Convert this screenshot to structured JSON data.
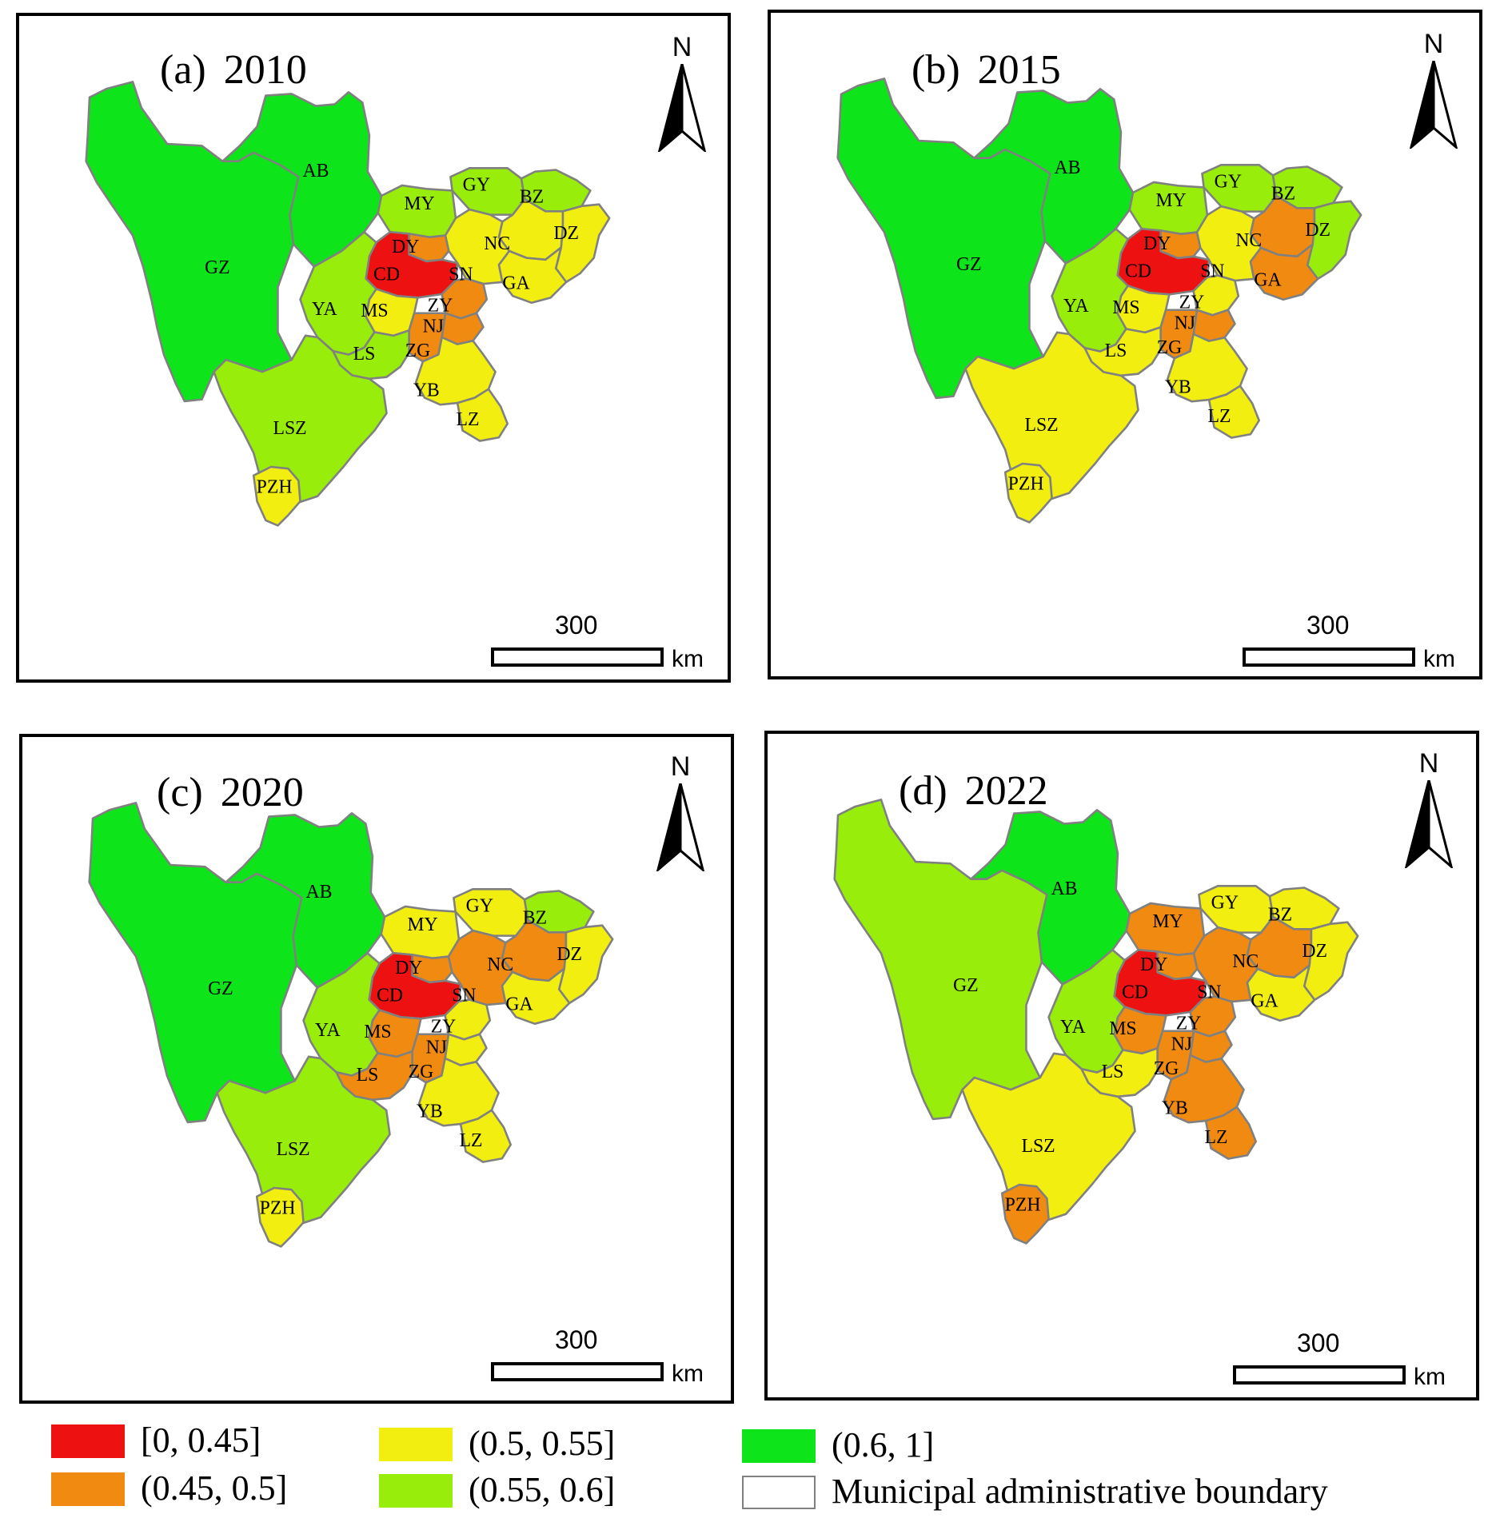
{
  "panels": [
    {
      "id": "a",
      "label": "(a)",
      "year": "2010",
      "cities": {
        "AB": "(0.6, 1]",
        "GZ": "(0.6, 1]",
        "MY": "(0.55, 0.6]",
        "GY": "(0.55, 0.6]",
        "BZ": "(0.55, 0.6]",
        "DZ": "(0.5, 0.55]",
        "NC": "(0.5, 0.55]",
        "GA": "(0.5, 0.55]",
        "SN": "(0.5, 0.55]",
        "DY": "(0.45, 0.5]",
        "CD": "[0, 0.45]",
        "YA": "(0.55, 0.6]",
        "MS": "(0.5, 0.55]",
        "ZY": "(0.45, 0.5]",
        "NJ": "(0.45, 0.5]",
        "LS": "(0.55, 0.6]",
        "ZG": "(0.45, 0.5]",
        "YB": "(0.5, 0.55]",
        "LZ": "(0.5, 0.55]",
        "LSZ": "(0.55, 0.6]",
        "PZH": "(0.5, 0.55]"
      }
    },
    {
      "id": "b",
      "label": "(b)",
      "year": "2015",
      "cities": {
        "AB": "(0.6, 1]",
        "GZ": "(0.6, 1]",
        "MY": "(0.55, 0.6]",
        "GY": "(0.55, 0.6]",
        "BZ": "(0.55, 0.6]",
        "DZ": "(0.55, 0.6]",
        "NC": "(0.45, 0.5]",
        "GA": "(0.45, 0.5]",
        "SN": "(0.5, 0.55]",
        "DY": "(0.45, 0.5]",
        "CD": "[0, 0.45]",
        "YA": "(0.55, 0.6]",
        "MS": "(0.5, 0.55]",
        "ZY": "(0.5, 0.55]",
        "NJ": "(0.45, 0.5]",
        "LS": "(0.5, 0.55]",
        "ZG": "(0.45, 0.5]",
        "YB": "(0.5, 0.55]",
        "LZ": "(0.5, 0.55]",
        "LSZ": "(0.5, 0.55]",
        "PZH": "(0.5, 0.55]"
      }
    },
    {
      "id": "c",
      "label": "(c)",
      "year": "2020",
      "cities": {
        "AB": "(0.6, 1]",
        "GZ": "(0.6, 1]",
        "MY": "(0.5, 0.55]",
        "GY": "(0.5, 0.55]",
        "BZ": "(0.55, 0.6]",
        "DZ": "(0.5, 0.55]",
        "NC": "(0.45, 0.5]",
        "GA": "(0.5, 0.55]",
        "SN": "(0.45, 0.5]",
        "DY": "(0.45, 0.5]",
        "CD": "[0, 0.45]",
        "YA": "(0.55, 0.6]",
        "MS": "(0.45, 0.5]",
        "ZY": "(0.5, 0.55]",
        "NJ": "(0.5, 0.55]",
        "LS": "(0.45, 0.5]",
        "ZG": "(0.45, 0.5]",
        "YB": "(0.5, 0.55]",
        "LZ": "(0.5, 0.55]",
        "LSZ": "(0.55, 0.6]",
        "PZH": "(0.5, 0.55]"
      }
    },
    {
      "id": "d",
      "label": "(d)",
      "year": "2022",
      "cities": {
        "AB": "(0.6, 1]",
        "GZ": "(0.55, 0.6]",
        "MY": "(0.45, 0.5]",
        "GY": "(0.5, 0.55]",
        "BZ": "(0.5, 0.55]",
        "DZ": "(0.5, 0.55]",
        "NC": "(0.45, 0.5]",
        "GA": "(0.5, 0.55]",
        "SN": "(0.45, 0.5]",
        "DY": "(0.45, 0.5]",
        "CD": "[0, 0.45]",
        "YA": "(0.55, 0.6]",
        "MS": "(0.45, 0.5]",
        "ZY": "(0.45, 0.5]",
        "NJ": "(0.45, 0.5]",
        "LS": "(0.5, 0.55]",
        "ZG": "(0.45, 0.5]",
        "YB": "(0.45, 0.5]",
        "LZ": "(0.45, 0.5]",
        "LSZ": "(0.5, 0.55]",
        "PZH": "(0.45, 0.5]"
      }
    }
  ],
  "north_label": "N",
  "scale": {
    "value": "300",
    "unit": "km"
  },
  "legend": [
    {
      "label": "[0, 0.45]",
      "color": "#ee1111"
    },
    {
      "label": "(0.45, 0.5]",
      "color": "#f08a10"
    },
    {
      "label": "(0.5, 0.55]",
      "color": "#f2ee10"
    },
    {
      "label": "(0.55, 0.6]",
      "color": "#98ee0a"
    },
    {
      "label": "(0.6, 1]",
      "color": "#0ee41a"
    },
    {
      "label": "Municipal administrative boundary",
      "color": "#808080"
    }
  ],
  "boundary_color": "#808080"
}
